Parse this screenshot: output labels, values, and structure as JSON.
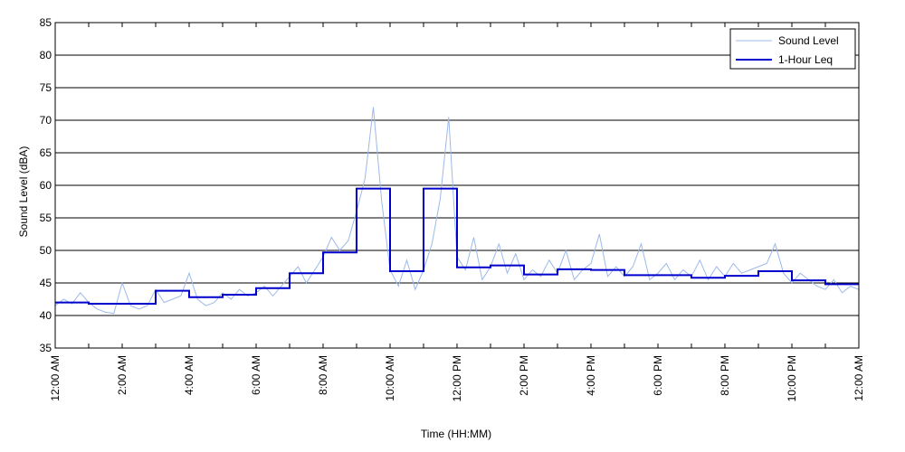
{
  "chart_data": {
    "type": "line",
    "title": "",
    "xlabel": "Time (HH:MM)",
    "ylabel": "Sound Level (dBA)",
    "ylim": [
      35,
      85
    ],
    "yticks": [
      35,
      40,
      45,
      50,
      55,
      60,
      65,
      70,
      75,
      80,
      85
    ],
    "xlim_hours": [
      0,
      24
    ],
    "xtick_hours": [
      0,
      2,
      4,
      6,
      8,
      10,
      12,
      14,
      16,
      18,
      20,
      22,
      24
    ],
    "xtick_labels": [
      "12:00 AM",
      "2:00 AM",
      "4:00 AM",
      "6:00 AM",
      "8:00 AM",
      "10:00 AM",
      "12:00 PM",
      "2:00 PM",
      "4:00 PM",
      "6:00 PM",
      "8:00 PM",
      "10:00 PM",
      "12:00 AM"
    ],
    "grid": "horizontal",
    "legend_position": "top-right",
    "series": [
      {
        "name": "Sound Level",
        "color": "#9db9ea",
        "style": "thin",
        "x_hours": [
          0,
          0.25,
          0.5,
          0.75,
          1,
          1.25,
          1.5,
          1.75,
          2,
          2.25,
          2.5,
          2.75,
          3,
          3.25,
          3.5,
          3.75,
          4,
          4.25,
          4.5,
          4.75,
          5,
          5.25,
          5.5,
          5.75,
          6,
          6.25,
          6.5,
          6.75,
          7,
          7.25,
          7.5,
          7.75,
          8,
          8.25,
          8.5,
          8.75,
          9,
          9.25,
          9.5,
          9.75,
          10,
          10.25,
          10.5,
          10.75,
          11,
          11.25,
          11.5,
          11.75,
          12,
          12.25,
          12.5,
          12.75,
          13,
          13.25,
          13.5,
          13.75,
          14,
          14.25,
          14.5,
          14.75,
          15,
          15.25,
          15.5,
          15.75,
          16,
          16.25,
          16.5,
          16.75,
          17,
          17.25,
          17.5,
          17.75,
          18,
          18.25,
          18.5,
          18.75,
          19,
          19.25,
          19.5,
          19.75,
          20,
          20.25,
          20.5,
          20.75,
          21,
          21.25,
          21.5,
          21.75,
          22,
          22.25,
          22.5,
          22.75,
          23,
          23.25,
          23.5,
          23.75,
          24
        ],
        "values": [
          41.5,
          42.5,
          41.8,
          43.5,
          42.0,
          41.0,
          40.5,
          40.3,
          45.0,
          41.5,
          41.0,
          41.5,
          44.0,
          42.0,
          42.5,
          43.0,
          46.5,
          42.5,
          41.5,
          42.0,
          43.5,
          42.5,
          44.0,
          43.0,
          43.5,
          44.5,
          43.0,
          44.5,
          46.0,
          47.5,
          45.0,
          47.0,
          49.0,
          52.0,
          50.0,
          51.5,
          56.0,
          61.0,
          72.0,
          57.5,
          47.0,
          44.5,
          48.5,
          44.0,
          47.0,
          51.0,
          58.0,
          70.5,
          49.0,
          47.0,
          52.0,
          45.5,
          47.5,
          51.0,
          46.5,
          49.5,
          45.5,
          47.0,
          46.0,
          48.5,
          46.5,
          50.0,
          45.5,
          47.0,
          48.0,
          52.5,
          46.0,
          47.5,
          46.0,
          47.5,
          51.0,
          45.5,
          46.5,
          48.0,
          45.5,
          47.0,
          46.0,
          48.5,
          45.5,
          47.5,
          46.0,
          48.0,
          46.5,
          47.0,
          47.5,
          48.0,
          51.0,
          46.5,
          45.0,
          46.5,
          45.5,
          44.5,
          44.0,
          45.5,
          43.5,
          44.5,
          44.0
        ]
      },
      {
        "name": "1-Hour Leq",
        "color": "#0000cc",
        "style": "step",
        "x_hours": [
          0,
          1,
          2,
          3,
          4,
          5,
          6,
          7,
          8,
          9,
          10,
          11,
          12,
          13,
          14,
          15,
          16,
          17,
          18,
          19,
          20,
          21,
          22,
          23
        ],
        "values": [
          42.0,
          41.8,
          41.8,
          43.8,
          42.8,
          43.2,
          44.2,
          46.5,
          49.7,
          59.5,
          46.8,
          59.5,
          47.4,
          47.7,
          46.3,
          47.1,
          47.0,
          46.2,
          46.2,
          45.8,
          46.1,
          46.8,
          45.4,
          44.8
        ]
      }
    ]
  }
}
